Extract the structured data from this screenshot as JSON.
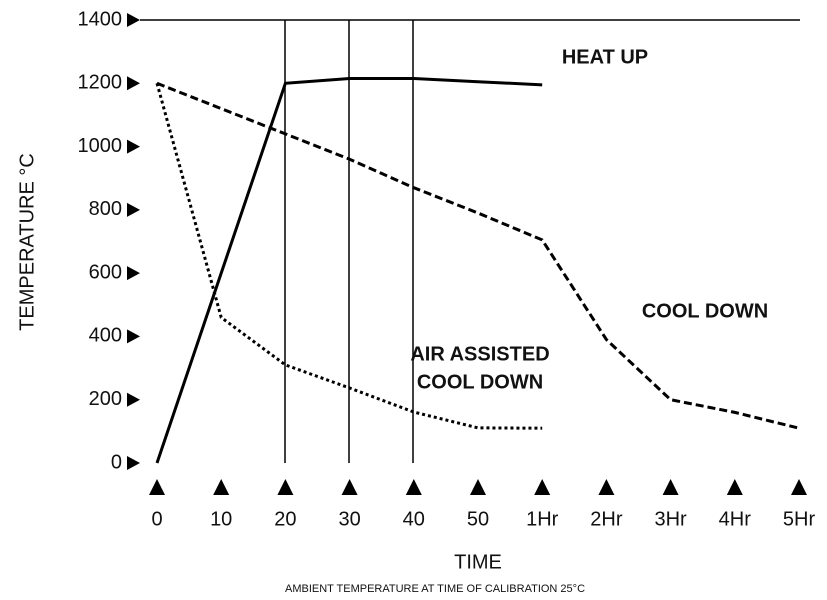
{
  "chart_data": {
    "type": "line",
    "x_label": "TIME",
    "y_label": "TEMPERATURE °C",
    "footnote": "AMBIENT TEMPERATURE AT TIME OF CALIBRATION 25°C",
    "categories": [
      "0",
      "10",
      "20",
      "30",
      "40",
      "50",
      "1Hr",
      "2Hr",
      "3Hr",
      "4Hr",
      "5Hr"
    ],
    "series": [
      {
        "style": "solid",
        "color": "#000000",
        "values": [
          0,
          600,
          1200,
          1215,
          1215,
          1205,
          1195,
          null,
          null,
          null,
          null
        ]
      },
      {
        "style": "dashed",
        "color": "#000000",
        "values": [
          1200,
          1120,
          1040,
          960,
          870,
          790,
          705,
          390,
          200,
          160,
          110
        ]
      },
      {
        "style": "dotted",
        "color": "#000000",
        "values": [
          1200,
          460,
          310,
          237,
          161,
          111,
          110,
          null,
          null,
          null,
          null
        ]
      }
    ],
    "annotations": [
      "HEAT UP",
      "COOL DOWN",
      "AIR ASSISTED",
      "COOL DOWN"
    ],
    "ylim": [
      0,
      1400
    ],
    "yticks": [
      0,
      200,
      400,
      600,
      800,
      1000,
      1200,
      1400
    ],
    "grid": false
  }
}
